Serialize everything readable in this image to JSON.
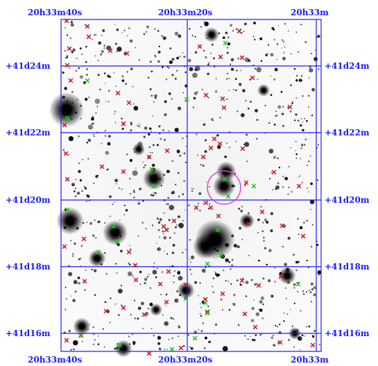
{
  "ra_labels_top": [
    "20h33m40s",
    "20h33m20s",
    "20h33m"
  ],
  "ra_labels_bottom": [
    "20h33m40s",
    "20h33m20s",
    "20h33m"
  ],
  "dec_labels_left": [
    "+41d24m",
    "+41d22m",
    "+41d20m",
    "+41d18m",
    "+41d16m"
  ],
  "dec_labels_right": [
    "+41d24m",
    "+41d22m",
    "+41d20m",
    "+41d18m",
    "+41d16m"
  ],
  "colors": {
    "grid": "#1a1aff",
    "red_markers": "#c81e1e",
    "green_markers": "#1ec81e",
    "highlight_circle": "#e040e0"
  }
}
